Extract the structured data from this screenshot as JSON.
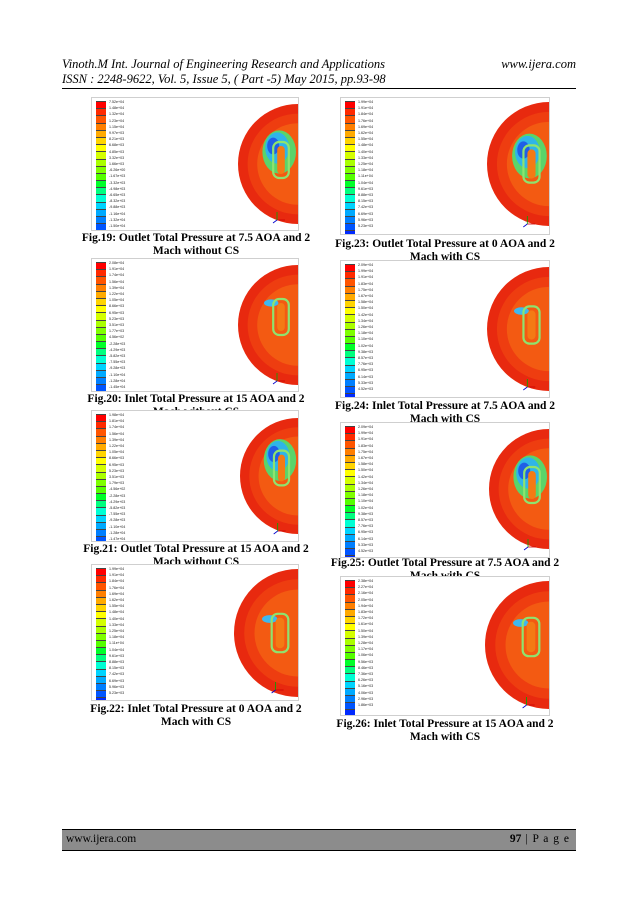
{
  "header": {
    "journal": "Vinoth.M Int. Journal of Engineering Research and Applications",
    "website": "www.ijera.com",
    "issn": "ISSN : 2248-9622, Vol. 5, Issue 5, ( Part -5) May 2015, pp.93-98"
  },
  "figures": [
    {
      "caption_line1": "Fig.19: Outlet Total Pressure at 7.5 AOA and 2",
      "caption_line2": "Mach without CS",
      "flow": "outlet",
      "aoa": 7.5,
      "ticks": [
        "7.52e+04",
        "1.48e+04",
        "1.32e+04",
        "1.23e+04",
        "1.15e+04",
        "9.97e+03",
        "8.21e+03",
        "6.68e+03",
        "4.85e+03",
        "3.32e+03",
        "1.66e+03",
        "-6.26e+00",
        "-1.67e+03",
        "-3.32e+03",
        "-4.98e+03",
        "-6.65e+03",
        "-8.32e+03",
        "-9.88e+03",
        "-1.16e+04",
        "-1.32e+04",
        "-1.50e+04"
      ]
    },
    {
      "caption_line1": "Fig.20: Inlet Total Pressure at 15 AOA and 2",
      "caption_line2": "Mach without CS",
      "flow": "inlet",
      "aoa": 15,
      "ticks": [
        "2.08e+04",
        "1.91e+04",
        "1.74e+04",
        "1.56e+04",
        "1.39e+04",
        "1.22e+04",
        "1.05e+04",
        "8.66e+03",
        "6.95e+03",
        "5.23e+03",
        "3.51e+03",
        "1.77e+03",
        "4.56e+02",
        "-2.28e+03",
        "-4.29e+03",
        "-5.82e+03",
        "-7.55e+03",
        "-9.28e+03",
        "-1.10e+04",
        "-1.28e+04",
        "-1.45e+04"
      ]
    },
    {
      "caption_line1": "Fig.21: Outlet Total Pressure at 15 AOA and 2",
      "caption_line2": "Mach without CS",
      "flow": "outlet",
      "aoa": 15,
      "ticks": [
        "1.98e+04",
        "1.81e+04",
        "1.74e+04",
        "1.56e+04",
        "1.39e+04",
        "1.22e+04",
        "1.05e+04",
        "8.66e+03",
        "6.95e+03",
        "5.23e+03",
        "3.51e+03",
        "1.79e+03",
        "-4.56e+02",
        "-2.28e+03",
        "-4.29e+03",
        "-5.82e+03",
        "-7.55e+03",
        "-9.28e+03",
        "-1.10e+04",
        "-1.28e+04",
        "-1.47e+04"
      ]
    },
    {
      "caption_line1": "Fig.22: Inlet Total Pressure at 0 AOA and 2",
      "caption_line2": "Mach with CS",
      "flow": "inlet",
      "aoa": 0,
      "ticks": [
        "1.99e+04",
        "1.91e+04",
        "1.84e+04",
        "1.76e+04",
        "1.69e+04",
        "1.62e+04",
        "1.55e+04",
        "1.48e+04",
        "1.40e+04",
        "1.33e+04",
        "1.25e+04",
        "1.18e+04",
        "1.11e+04",
        "1.04e+04",
        "9.61e+03",
        "8.88e+03",
        "8.15e+03",
        "7.42e+03",
        "6.69e+03",
        "5.96e+03",
        "5.23e+03"
      ]
    },
    {
      "caption_line1": "Fig.23: Outlet Total Pressure at 0 AOA and 2",
      "caption_line2": "Mach with CS",
      "flow": "outlet",
      "aoa": 0,
      "ticks": [
        "1.99e+04",
        "1.91e+04",
        "1.84e+04",
        "1.76e+04",
        "1.69e+04",
        "1.62e+04",
        "1.55e+04",
        "1.48e+04",
        "1.40e+04",
        "1.33e+04",
        "1.25e+04",
        "1.18e+04",
        "1.11e+04",
        "1.04e+04",
        "9.61e+03",
        "8.88e+03",
        "8.15e+03",
        "7.42e+03",
        "6.69e+03",
        "5.96e+03",
        "5.23e+03"
      ]
    },
    {
      "caption_line1": "Fig.24: Inlet Total Pressure at 7.5 AOA and 2",
      "caption_line2": "Mach with CS",
      "flow": "inlet",
      "aoa": 7.5,
      "ticks": [
        "2.09e+04",
        "1.99e+04",
        "1.91e+04",
        "1.83e+04",
        "1.75e+04",
        "1.67e+04",
        "1.58e+04",
        "1.50e+04",
        "1.42e+04",
        "1.34e+04",
        "1.26e+04",
        "1.18e+04",
        "1.10e+04",
        "1.02e+04",
        "9.38e+03",
        "8.57e+03",
        "7.76e+03",
        "6.95e+03",
        "6.14e+03",
        "5.33e+03",
        "4.52e+03"
      ]
    },
    {
      "caption_line1": "Fig.25: Outlet Total Pressure at 7.5 AOA and 2",
      "caption_line2": "Mach with CS",
      "flow": "outlet",
      "aoa": 7.5,
      "ticks": [
        "2.09e+04",
        "1.99e+04",
        "1.91e+04",
        "1.83e+04",
        "1.75e+04",
        "1.67e+04",
        "1.58e+04",
        "1.50e+04",
        "1.42e+04",
        "1.34e+04",
        "1.26e+04",
        "1.18e+04",
        "1.10e+04",
        "1.02e+04",
        "9.38e+03",
        "8.57e+03",
        "7.76e+03",
        "6.95e+03",
        "6.14e+03",
        "5.33e+03",
        "4.52e+03"
      ]
    },
    {
      "caption_line1": "Fig.26: Inlet Total Pressure at 15 AOA and 2",
      "caption_line2": "Mach with CS",
      "flow": "inlet",
      "aoa": 15,
      "ticks": [
        "2.38e+04",
        "2.27e+04",
        "2.16e+04",
        "2.05e+04",
        "1.94e+04",
        "1.83e+04",
        "1.72e+04",
        "1.61e+04",
        "1.50e+04",
        "1.39e+04",
        "1.28e+04",
        "1.17e+04",
        "1.06e+04",
        "9.56e+03",
        "8.46e+03",
        "7.36e+03",
        "6.26e+03",
        "5.16e+03",
        "4.06e+03",
        "2.96e+03",
        "1.86e+03"
      ]
    }
  ],
  "legend_colors": [
    "#ff0000",
    "#ff2a00",
    "#ff5500",
    "#ff7f00",
    "#ffaa00",
    "#ffd400",
    "#ffff00",
    "#d4ff00",
    "#aaff00",
    "#7fff00",
    "#55ff00",
    "#00ff2a",
    "#00ff7f",
    "#00ffd4",
    "#00d4ff",
    "#00aaff",
    "#007fff",
    "#0055ff",
    "#002aff",
    "#0000ff",
    "#0000c8"
  ],
  "footer": {
    "website": "www.ijera.com",
    "page_number": "97",
    "page_label": "| P a g e"
  }
}
